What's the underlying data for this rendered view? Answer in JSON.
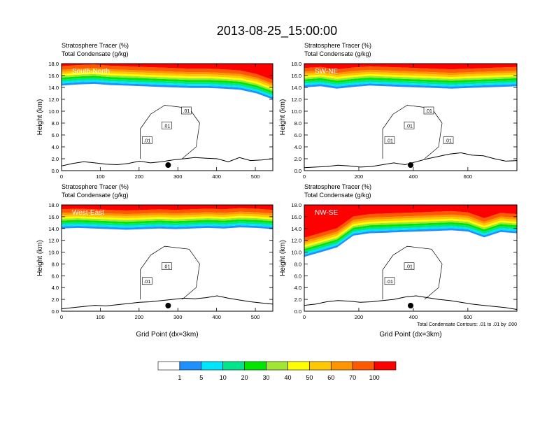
{
  "title": "2013-08-25_15:00:00",
  "chart_data": [
    {
      "type": "heatmap",
      "panel_label": "South-North",
      "left_header": "Stratosphere Tracer   (%)",
      "left_header2": "Total Condensate   (g/kg)",
      "xlabel": "",
      "ylabel": "Height (km)",
      "xlim": [
        0,
        545
      ],
      "xticks": [
        0,
        100,
        200,
        300,
        400,
        500
      ],
      "ylim": [
        0,
        18
      ],
      "yticks": [
        "0.0",
        "2.0",
        "4.0",
        "6.0",
        "8.0",
        "10.0",
        "12.0",
        "14.0",
        "16.0",
        "18.0"
      ],
      "tracer_base_km": [
        14.3,
        14.5,
        14.6,
        14.4,
        14.3,
        14.2,
        14.1,
        14.0,
        13.9,
        13.9,
        13.8,
        13.6,
        13.0,
        12.0
      ],
      "terrain_km": [
        0.8,
        1.2,
        1.5,
        1.3,
        1.1,
        1.0,
        1.2,
        1.6,
        1.3,
        1.5,
        1.8,
        2.0,
        2.2,
        2.1,
        2.0,
        1.5,
        2.2,
        1.7,
        1.8,
        2.0
      ],
      "contour_labels": [
        ".01",
        ".01",
        ".01"
      ],
      "marker_x": 275
    },
    {
      "type": "heatmap",
      "panel_label": "SW-NE",
      "left_header": "Stratosphere Tracer   (%)",
      "left_header2": "Total Condensate   (g/kg)",
      "xlabel": "",
      "ylabel": "Height (km)",
      "xlim": [
        0,
        780
      ],
      "xticks": [
        0,
        200,
        400,
        600
      ],
      "ylim": [
        0,
        18
      ],
      "yticks": [
        "0.0",
        "2.0",
        "4.0",
        "6.0",
        "8.0",
        "10.0",
        "12.0",
        "14.0",
        "16.0",
        "18.0"
      ],
      "tracer_base_km": [
        14.0,
        14.2,
        13.8,
        14.1,
        14.3,
        14.2,
        14.1,
        14.0,
        13.9,
        13.8,
        13.9,
        14.0,
        14.1,
        14.2
      ],
      "terrain_km": [
        0.5,
        0.6,
        0.7,
        0.9,
        0.8,
        0.6,
        0.7,
        1.0,
        1.3,
        1.0,
        1.5,
        2.0,
        2.4,
        2.8,
        3.0,
        2.6,
        2.5,
        2.0,
        1.6,
        1.7
      ],
      "contour_labels": [
        ".01",
        ".01",
        ".01",
        ".01"
      ],
      "marker_x": 390
    },
    {
      "type": "heatmap",
      "panel_label": "West-East",
      "left_header": "Stratosphere Tracer   (%)",
      "left_header2": "Total Condensate   (g/kg)",
      "xlabel": "Grid Point (dx=3km)",
      "ylabel": "Height (km)",
      "xlim": [
        0,
        545
      ],
      "xticks": [
        0,
        100,
        200,
        300,
        400,
        500
      ],
      "ylim": [
        0,
        18
      ],
      "yticks": [
        "0.0",
        "2.0",
        "4.0",
        "6.0",
        "8.0",
        "10.0",
        "12.0",
        "14.0",
        "16.0",
        "18.0"
      ],
      "tracer_base_km": [
        14.0,
        14.1,
        14.0,
        13.9,
        13.8,
        13.9,
        14.0,
        13.9,
        14.0,
        14.1,
        14.0,
        14.2,
        14.1,
        13.9
      ],
      "terrain_km": [
        0.4,
        0.6,
        0.8,
        1.0,
        0.9,
        1.1,
        1.3,
        1.5,
        1.6,
        1.8,
        2.0,
        2.2,
        2.1,
        2.3,
        2.6,
        2.2,
        1.9,
        1.6,
        1.4,
        1.2
      ],
      "contour_labels": [
        ".01",
        ".01"
      ],
      "marker_x": 275
    },
    {
      "type": "heatmap",
      "panel_label": "NW-SE",
      "left_header": "Stratosphere Tracer   (%)",
      "left_header2": "Total Condensate   (g/kg)",
      "xlabel": "Grid Point (dx=3km)",
      "ylabel": "Height (km)",
      "xlim": [
        0,
        780
      ],
      "xticks": [
        0,
        200,
        400,
        600
      ],
      "ylim": [
        0,
        18
      ],
      "yticks": [
        "0.0",
        "2.0",
        "4.0",
        "6.0",
        "8.0",
        "10.0",
        "12.0",
        "14.0",
        "16.0",
        "18.0"
      ],
      "tracer_base_km": [
        9.2,
        10.0,
        10.8,
        12.8,
        13.2,
        13.3,
        13.4,
        13.5,
        13.6,
        13.7,
        13.5,
        12.5,
        13.4,
        13.2
      ],
      "terrain_km": [
        1.0,
        1.2,
        1.6,
        1.8,
        1.7,
        1.5,
        1.6,
        1.8,
        2.0,
        2.4,
        2.6,
        2.3,
        2.0,
        1.8,
        1.5,
        1.2,
        1.0,
        0.8,
        0.6,
        0.3
      ],
      "contour_labels": [
        ".01",
        ".01"
      ],
      "marker_x": 390,
      "footnote": "Total Condensate Contours: .01 to .01 by .000"
    }
  ],
  "colorbar": {
    "levels": [
      "1",
      "5",
      "10",
      "20",
      "30",
      "40",
      "50",
      "60",
      "70",
      "100"
    ],
    "colors": [
      "#ffffff",
      "#1e90ff",
      "#00e5ff",
      "#00e58c",
      "#00e600",
      "#a0e632",
      "#ffff00",
      "#ffc800",
      "#ff9600",
      "#ff5a00",
      "#ff0000"
    ]
  }
}
